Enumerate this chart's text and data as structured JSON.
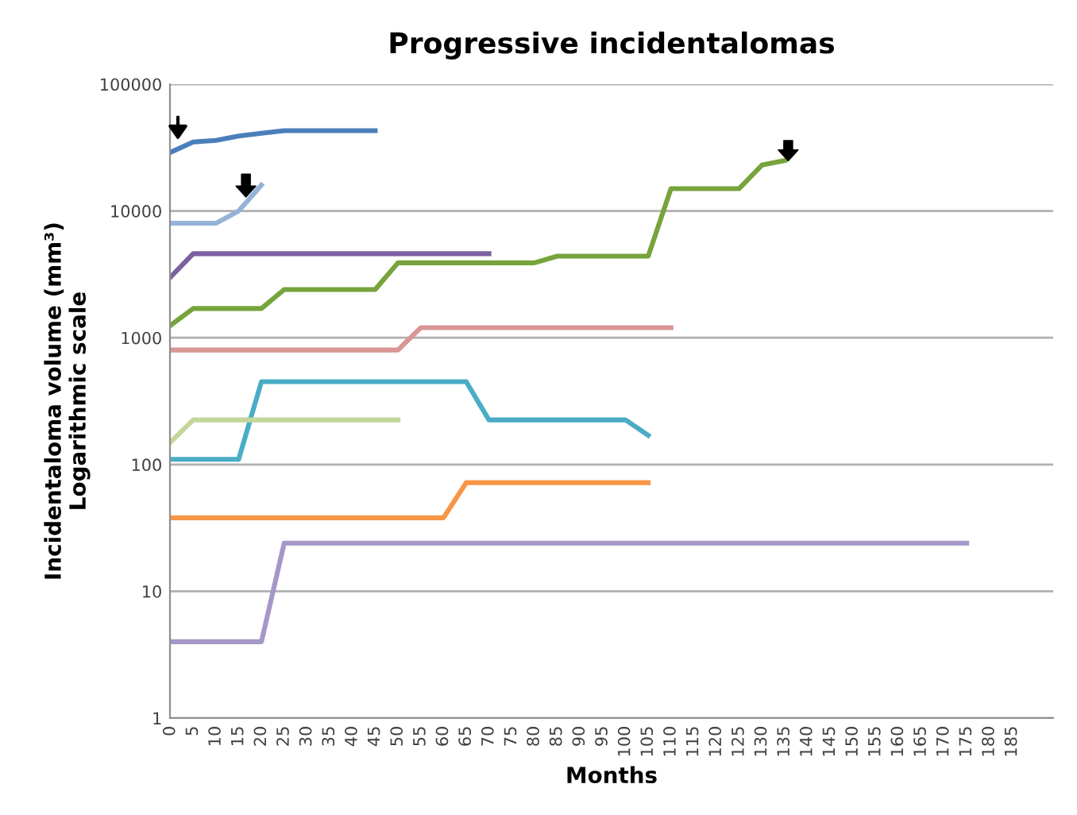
{
  "chart_data": {
    "type": "line",
    "title": "Progressive incidentalomas",
    "xlabel": "Months",
    "ylabel": "Incidentaloma volume (mm³)\nLogarithmic scale",
    "categories": [
      "0",
      "5",
      "10",
      "15",
      "20",
      "25",
      "30",
      "35",
      "40",
      "45",
      "50",
      "55",
      "60",
      "65",
      "70",
      "75",
      "80",
      "85",
      "90",
      "95",
      "100",
      "105",
      "110",
      "115",
      "120",
      "125",
      "130",
      "135",
      "140",
      "145",
      "150",
      "155",
      "160",
      "165",
      "170",
      "175",
      "180",
      "185"
    ],
    "log": "y",
    "ylim": [
      1,
      100000
    ],
    "yticks": [
      1,
      10,
      100,
      1000,
      10000,
      100000
    ],
    "grid": "y",
    "marker": "none",
    "line_style": "solid",
    "series": [
      {
        "color": "#4a7ebb",
        "values": [
          29000,
          35000,
          36000,
          39000,
          41000,
          43000,
          43000,
          43000,
          43000,
          43000,
          null,
          null,
          null,
          null,
          null,
          null,
          null,
          null,
          null,
          null,
          null,
          null,
          null,
          null,
          null,
          null,
          null,
          null,
          null,
          null,
          null,
          null,
          null,
          null,
          null,
          null,
          null,
          null
        ]
      },
      {
        "color": "#95b3d7",
        "values": [
          8000,
          8000,
          8000,
          10000,
          16000,
          null,
          null,
          null,
          null,
          null,
          null,
          null,
          null,
          null,
          null,
          null,
          null,
          null,
          null,
          null,
          null,
          null,
          null,
          null,
          null,
          null,
          null,
          null,
          null,
          null,
          null,
          null,
          null,
          null,
          null,
          null,
          null,
          null
        ]
      },
      {
        "color": "#7d60a0",
        "values": [
          3000,
          4600,
          4600,
          4600,
          4600,
          4600,
          4600,
          4600,
          4600,
          4600,
          4600,
          4600,
          4600,
          4600,
          4600,
          null,
          null,
          null,
          null,
          null,
          null,
          null,
          null,
          null,
          null,
          null,
          null,
          null,
          null,
          null,
          null,
          null,
          null,
          null,
          null,
          null,
          null,
          null
        ]
      },
      {
        "color": "#77a33c",
        "values": [
          1250,
          1700,
          1700,
          1700,
          1700,
          2400,
          2400,
          2400,
          2400,
          2400,
          3900,
          3900,
          3900,
          3900,
          3900,
          3900,
          3900,
          4400,
          4400,
          4400,
          4400,
          4400,
          15000,
          15000,
          15000,
          15000,
          23000,
          25000,
          null,
          null,
          null,
          null,
          null,
          null,
          null,
          null,
          null,
          null
        ]
      },
      {
        "color": "#d99694",
        "values": [
          800,
          800,
          800,
          800,
          800,
          800,
          800,
          800,
          800,
          800,
          800,
          1200,
          1200,
          1200,
          1200,
          1200,
          1200,
          1200,
          1200,
          1200,
          1200,
          1200,
          1200,
          null,
          null,
          null,
          null,
          null,
          null,
          null,
          null,
          null,
          null,
          null,
          null,
          null,
          null,
          null
        ]
      },
      {
        "color": "#4bacc6",
        "values": [
          110,
          110,
          110,
          110,
          450,
          450,
          450,
          450,
          450,
          450,
          450,
          450,
          450,
          450,
          225,
          225,
          225,
          225,
          225,
          225,
          225,
          170,
          null,
          null,
          null,
          null,
          null,
          null,
          null,
          null,
          null,
          null,
          null,
          null,
          null,
          null,
          null,
          null
        ]
      },
      {
        "color": "#c3d69b",
        "values": [
          150,
          225,
          225,
          225,
          225,
          225,
          225,
          225,
          225,
          225,
          225,
          null,
          null,
          null,
          null,
          null,
          null,
          null,
          null,
          null,
          null,
          null,
          null,
          null,
          null,
          null,
          null,
          null,
          null,
          null,
          null,
          null,
          null,
          null,
          null,
          null,
          null,
          null
        ]
      },
      {
        "color": "#f79646",
        "values": [
          38,
          38,
          38,
          38,
          38,
          38,
          38,
          38,
          38,
          38,
          38,
          38,
          38,
          72,
          72,
          72,
          72,
          72,
          72,
          72,
          72,
          72,
          null,
          null,
          null,
          null,
          null,
          null,
          null,
          null,
          null,
          null,
          null,
          null,
          null,
          null,
          null,
          null
        ]
      },
      {
        "color": "#a597c6",
        "values": [
          4,
          4,
          4,
          4,
          4,
          24,
          24,
          24,
          24,
          24,
          24,
          24,
          24,
          24,
          24,
          24,
          24,
          24,
          24,
          24,
          24,
          24,
          24,
          24,
          24,
          24,
          24,
          24,
          24,
          24,
          24,
          24,
          24,
          24,
          24,
          24,
          null,
          null
        ]
      }
    ]
  }
}
